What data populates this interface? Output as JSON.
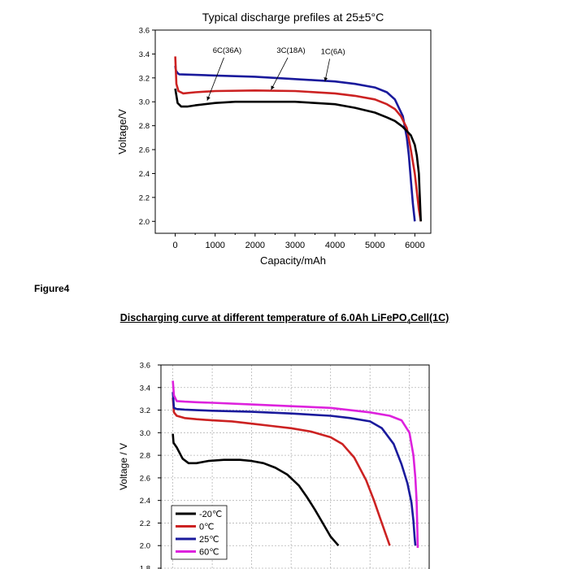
{
  "figure_label": "Figure4",
  "section_title": {
    "prefix": "Discharging curve at different temperature of 6.0Ah LiFePO",
    "sub": "4",
    "suffix": "Cell(1C)"
  },
  "chart_data": [
    {
      "type": "line",
      "title": "Typical discharge prefiles at 25±5°C",
      "xlabel": "Capacity/mAh",
      "ylabel": "Voltage/V",
      "xlim": [
        -500,
        6400
      ],
      "ylim": [
        1.9,
        3.6
      ],
      "x_ticks": [
        0,
        1000,
        2000,
        3000,
        4000,
        5000,
        6000
      ],
      "y_ticks": [
        2.0,
        2.2,
        2.4,
        2.6,
        2.8,
        3.0,
        3.2,
        3.4,
        3.6
      ],
      "y_tick_labels": [
        "2.0",
        "2.2",
        "2.4",
        "2.6",
        "2.8",
        "3.0",
        "3.2",
        "3.4",
        "3.6"
      ],
      "grid": false,
      "annotations": [
        {
          "text": "6C(36A)",
          "x": 1300,
          "y": 3.41,
          "arrow_to": [
            800,
            3.01
          ]
        },
        {
          "text": "3C(18A)",
          "x": 2900,
          "y": 3.41,
          "arrow_to": [
            2400,
            3.1
          ]
        },
        {
          "text": "1C(6A)",
          "x": 3950,
          "y": 3.4,
          "arrow_to": [
            3750,
            3.17
          ]
        }
      ],
      "series": [
        {
          "name": "1C(6A)",
          "color": "#1a1a9c",
          "x": [
            0,
            20,
            60,
            100,
            500,
            1000,
            2000,
            3000,
            4000,
            4500,
            5000,
            5300,
            5500,
            5700,
            5800,
            5850,
            5900,
            5950,
            6000
          ],
          "y": [
            3.3,
            3.26,
            3.24,
            3.23,
            3.225,
            3.22,
            3.21,
            3.19,
            3.17,
            3.15,
            3.12,
            3.08,
            3.02,
            2.88,
            2.7,
            2.55,
            2.35,
            2.15,
            2.0
          ]
        },
        {
          "name": "3C(18A)",
          "color": "#cc2222",
          "x": [
            0,
            30,
            80,
            200,
            500,
            1000,
            2000,
            3000,
            4000,
            4500,
            5000,
            5300,
            5500,
            5650,
            5800,
            5900,
            6000,
            6050,
            6100,
            6150
          ],
          "y": [
            3.38,
            3.15,
            3.09,
            3.07,
            3.08,
            3.09,
            3.095,
            3.09,
            3.07,
            3.05,
            3.02,
            2.98,
            2.94,
            2.88,
            2.78,
            2.6,
            2.4,
            2.25,
            2.1,
            2.0
          ]
        },
        {
          "name": "6C(36A)",
          "color": "#000000",
          "x": [
            0,
            60,
            150,
            300,
            500,
            1000,
            1500,
            2000,
            2500,
            3000,
            3500,
            4000,
            4500,
            5000,
            5300,
            5500,
            5700,
            5900,
            6000,
            6050,
            6100,
            6150
          ],
          "y": [
            3.11,
            2.99,
            2.96,
            2.96,
            2.97,
            2.99,
            3.0,
            3.0,
            3.0,
            3.0,
            2.99,
            2.98,
            2.95,
            2.91,
            2.87,
            2.84,
            2.79,
            2.72,
            2.64,
            2.55,
            2.4,
            2.0
          ]
        }
      ]
    },
    {
      "type": "line",
      "title": "",
      "xlabel": "",
      "ylabel": "Voltage / V",
      "xlim": [
        -300,
        6500
      ],
      "ylim": [
        1.8,
        3.6
      ],
      "x_gridlines": [
        0,
        1000,
        2000,
        3000,
        4000,
        5000,
        6000
      ],
      "y_ticks": [
        1.8,
        2.0,
        2.2,
        2.4,
        2.6,
        2.8,
        3.0,
        3.2,
        3.4,
        3.6
      ],
      "y_tick_labels": [
        "1.8",
        "2.0",
        "2.2",
        "2.4",
        "2.6",
        "2.8",
        "3.0",
        "3.2",
        "3.4",
        "3.6"
      ],
      "grid": true,
      "legend": "bottom-left",
      "series": [
        {
          "name": "-20℃",
          "color": "#000000",
          "x": [
            0,
            20,
            100,
            250,
            400,
            600,
            900,
            1300,
            1700,
            2000,
            2300,
            2600,
            2900,
            3200,
            3400,
            3600,
            3800,
            4000,
            4200
          ],
          "y": [
            2.99,
            2.91,
            2.87,
            2.77,
            2.73,
            2.73,
            2.75,
            2.76,
            2.76,
            2.75,
            2.73,
            2.69,
            2.63,
            2.53,
            2.43,
            2.32,
            2.2,
            2.08,
            2.0
          ]
        },
        {
          "name": "0℃",
          "color": "#cc2222",
          "x": [
            0,
            30,
            100,
            300,
            600,
            1000,
            1500,
            2000,
            2500,
            3000,
            3500,
            4000,
            4300,
            4600,
            4900,
            5100,
            5250,
            5400,
            5500
          ],
          "y": [
            3.31,
            3.18,
            3.15,
            3.13,
            3.12,
            3.11,
            3.1,
            3.08,
            3.06,
            3.04,
            3.01,
            2.96,
            2.9,
            2.78,
            2.58,
            2.4,
            2.25,
            2.1,
            2.0
          ]
        },
        {
          "name": "25℃",
          "color": "#1a1a9c",
          "x": [
            0,
            30,
            100,
            300,
            600,
            1000,
            2000,
            3000,
            4000,
            4500,
            5000,
            5300,
            5600,
            5800,
            5950,
            6050,
            6100,
            6130,
            6150
          ],
          "y": [
            3.36,
            3.22,
            3.21,
            3.205,
            3.2,
            3.195,
            3.185,
            3.17,
            3.15,
            3.13,
            3.1,
            3.04,
            2.9,
            2.72,
            2.55,
            2.38,
            2.22,
            2.08,
            2.0
          ]
        },
        {
          "name": "60℃",
          "color": "#dd22dd",
          "x": [
            0,
            30,
            100,
            300,
            600,
            1000,
            2000,
            3000,
            4000,
            5000,
            5500,
            5800,
            6000,
            6100,
            6150,
            6180,
            6200,
            6210
          ],
          "y": [
            3.46,
            3.33,
            3.28,
            3.275,
            3.27,
            3.265,
            3.25,
            3.235,
            3.22,
            3.18,
            3.15,
            3.11,
            3.0,
            2.8,
            2.6,
            2.4,
            2.15,
            1.98
          ]
        }
      ]
    }
  ]
}
